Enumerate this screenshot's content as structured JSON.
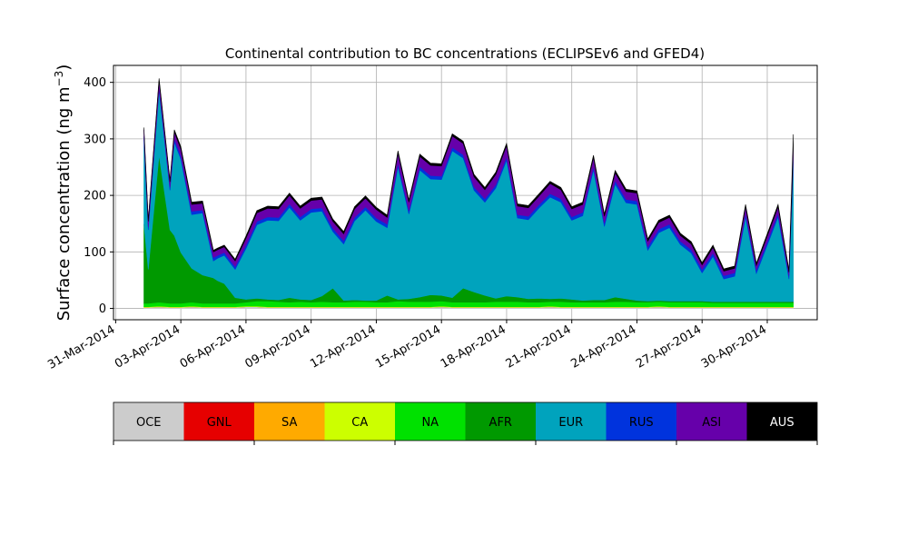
{
  "chart_data": {
    "type": "area",
    "title": "Continental contribution to BC concentrations (ECLIPSEv6 and GFED4)",
    "ylabel_main": "Surface concentration (ng m",
    "ylabel_sup": "−3",
    "ylabel_close": ")",
    "xlabel": "",
    "ylim": [
      -20,
      430
    ],
    "y_ticks": [
      0,
      100,
      200,
      300,
      400
    ],
    "y_tick_labels": [
      "0",
      "100",
      "200",
      "300",
      "400"
    ],
    "x_ticks": [
      0,
      3,
      6,
      9,
      12,
      15,
      18,
      21,
      24,
      27,
      30
    ],
    "x_tick_labels": [
      "31-Mar-2014",
      "03-Apr-2014",
      "06-Apr-2014",
      "09-Apr-2014",
      "12-Apr-2014",
      "15-Apr-2014",
      "18-Apr-2014",
      "21-Apr-2014",
      "24-Apr-2014",
      "27-Apr-2014",
      "30-Apr-2014"
    ],
    "xlim": [
      -0.1,
      32.3
    ],
    "grid": true,
    "legend_position": "bottom colorbar",
    "x": [
      1.3,
      1.5,
      2.0,
      2.5,
      2.7,
      3.0,
      3.5,
      4.0,
      4.5,
      4.7,
      5.0,
      5.5,
      6.0,
      6.5,
      7.0,
      7.5,
      8.0,
      8.5,
      9.0,
      9.5,
      10.0,
      10.5,
      11.0,
      11.5,
      12.0,
      12.5,
      13.0,
      13.5,
      14.0,
      14.5,
      15.0,
      15.5,
      16.0,
      16.5,
      17.0,
      17.5,
      18.0,
      18.5,
      19.0,
      19.5,
      20.0,
      20.5,
      21.0,
      21.5,
      22.0,
      22.5,
      23.0,
      23.5,
      24.0,
      24.5,
      25.0,
      25.5,
      26.0,
      26.5,
      27.0,
      27.5,
      28.0,
      28.5,
      29.0,
      29.5,
      30.0,
      30.5,
      31.0,
      31.2
    ],
    "series": [
      {
        "name": "OCE",
        "color": "#cccccc",
        "values": [
          2,
          2,
          3,
          2,
          2,
          2,
          3,
          2,
          2,
          2,
          2,
          2,
          3,
          3,
          2,
          2,
          2,
          2,
          2,
          2,
          2,
          2,
          2,
          2,
          2,
          2,
          2,
          2,
          2,
          2,
          3,
          2,
          2,
          2,
          2,
          2,
          2,
          2,
          2,
          2,
          3,
          2,
          2,
          2,
          2,
          2,
          2,
          2,
          2,
          2,
          3,
          2,
          2,
          2,
          2,
          2,
          2,
          2,
          2,
          2,
          2,
          2,
          2,
          2
        ]
      },
      {
        "name": "GNL",
        "color": "#e60000",
        "values": [
          0,
          0,
          0,
          0,
          0,
          0,
          0,
          0,
          0,
          0,
          0,
          0,
          0,
          0,
          0,
          0,
          0,
          0,
          0,
          0,
          0,
          0,
          0,
          0,
          0,
          0,
          0,
          0,
          0,
          0,
          0,
          0,
          0,
          0,
          0,
          0,
          0,
          0,
          0,
          0,
          0,
          0,
          0,
          0,
          0,
          0,
          0,
          0,
          0,
          0,
          0,
          0,
          0,
          0,
          0,
          0,
          0,
          0,
          0,
          0,
          0,
          0,
          0,
          0
        ]
      },
      {
        "name": "SA",
        "color": "#ffaa00",
        "values": [
          0,
          0,
          0,
          0,
          0,
          0,
          0,
          0,
          0,
          0,
          0,
          0,
          0,
          0,
          0,
          0,
          0,
          0,
          0,
          0,
          0,
          0,
          0,
          0,
          0,
          0,
          0,
          0,
          0,
          0,
          0,
          0,
          0,
          0,
          0,
          0,
          0,
          0,
          0,
          0,
          0,
          0,
          0,
          0,
          0,
          0,
          0,
          0,
          0,
          0,
          0,
          0,
          0,
          0,
          0,
          0,
          0,
          0,
          0,
          0,
          0,
          0,
          0,
          0
        ]
      },
      {
        "name": "CA",
        "color": "#ccff00",
        "values": [
          1,
          1,
          1,
          1,
          1,
          1,
          1,
          1,
          1,
          1,
          1,
          1,
          1,
          1,
          1,
          1,
          1,
          1,
          1,
          1,
          1,
          1,
          1,
          1,
          1,
          1,
          1,
          1,
          1,
          1,
          1,
          1,
          1,
          1,
          1,
          1,
          1,
          1,
          1,
          1,
          1,
          1,
          1,
          1,
          1,
          1,
          1,
          1,
          1,
          1,
          1,
          1,
          1,
          1,
          1,
          1,
          1,
          1,
          1,
          1,
          1,
          1,
          1,
          1
        ]
      },
      {
        "name": "NA",
        "color": "#00e100",
        "values": [
          6,
          6,
          7,
          6,
          6,
          6,
          7,
          6,
          6,
          6,
          6,
          6,
          7,
          9,
          10,
          9,
          8,
          9,
          8,
          9,
          8,
          8,
          9,
          9,
          8,
          8,
          10,
          9,
          9,
          9,
          9,
          8,
          8,
          8,
          8,
          9,
          9,
          9,
          8,
          8,
          8,
          9,
          8,
          8,
          8,
          8,
          9,
          9,
          8,
          8,
          8,
          8,
          8,
          8,
          8,
          7,
          7,
          7,
          7,
          7,
          7,
          7,
          7,
          7
        ]
      },
      {
        "name": "AFR",
        "color": "#009900",
        "values": [
          140,
          60,
          260,
          130,
          120,
          90,
          60,
          50,
          45,
          40,
          35,
          10,
          5,
          5,
          3,
          3,
          8,
          4,
          4,
          10,
          25,
          3,
          3,
          2,
          3,
          12,
          3,
          5,
          8,
          12,
          10,
          8,
          25,
          18,
          12,
          6,
          10,
          8,
          6,
          7,
          5,
          6,
          5,
          3,
          4,
          4,
          8,
          5,
          3,
          2,
          2,
          2,
          2,
          2,
          2,
          2,
          2,
          2,
          2,
          2,
          2,
          2,
          2,
          2
        ]
      },
      {
        "name": "EUR",
        "color": "#00a3bd",
        "values": [
          150,
          70,
          115,
          70,
          165,
          165,
          95,
          110,
          30,
          40,
          50,
          50,
          90,
          130,
          140,
          140,
          160,
          140,
          155,
          150,
          100,
          100,
          140,
          160,
          140,
          120,
          235,
          150,
          225,
          205,
          205,
          260,
          230,
          180,
          165,
          195,
          240,
          140,
          140,
          160,
          180,
          170,
          140,
          150,
          230,
          130,
          200,
          170,
          170,
          90,
          120,
          130,
          100,
          85,
          50,
          80,
          40,
          45,
          150,
          50,
          100,
          150,
          40,
          250
        ]
      },
      {
        "name": "RUS",
        "color": "#0033dd",
        "values": [
          5,
          5,
          5,
          5,
          6,
          6,
          6,
          5,
          6,
          5,
          5,
          5,
          6,
          6,
          6,
          6,
          6,
          6,
          6,
          6,
          6,
          6,
          6,
          6,
          6,
          6,
          6,
          6,
          6,
          6,
          6,
          6,
          6,
          6,
          6,
          6,
          6,
          6,
          6,
          6,
          6,
          6,
          6,
          6,
          6,
          6,
          6,
          6,
          6,
          6,
          6,
          6,
          6,
          6,
          6,
          6,
          6,
          6,
          6,
          6,
          6,
          6,
          6,
          6
        ]
      },
      {
        "name": "ASI",
        "color": "#6600aa",
        "values": [
          12,
          10,
          12,
          10,
          12,
          12,
          12,
          12,
          10,
          10,
          10,
          10,
          12,
          15,
          15,
          15,
          15,
          15,
          15,
          15,
          12,
          12,
          15,
          15,
          15,
          12,
          18,
          15,
          18,
          18,
          18,
          20,
          20,
          18,
          16,
          18,
          20,
          15,
          15,
          15,
          18,
          16,
          14,
          14,
          16,
          12,
          14,
          14,
          14,
          10,
          12,
          12,
          10,
          10,
          8,
          10,
          8,
          8,
          12,
          8,
          10,
          12,
          6,
          15
        ]
      },
      {
        "name": "AUS",
        "color": "#000000",
        "values": [
          4,
          3,
          4,
          3,
          4,
          4,
          4,
          4,
          3,
          3,
          3,
          3,
          4,
          4,
          4,
          4,
          4,
          4,
          4,
          4,
          4,
          4,
          4,
          4,
          4,
          4,
          4,
          4,
          4,
          4,
          4,
          4,
          4,
          4,
          4,
          4,
          4,
          4,
          4,
          4,
          4,
          4,
          4,
          4,
          4,
          4,
          4,
          4,
          4,
          4,
          4,
          4,
          4,
          4,
          4,
          4,
          4,
          4,
          4,
          4,
          4,
          4,
          4,
          25
        ]
      }
    ]
  }
}
